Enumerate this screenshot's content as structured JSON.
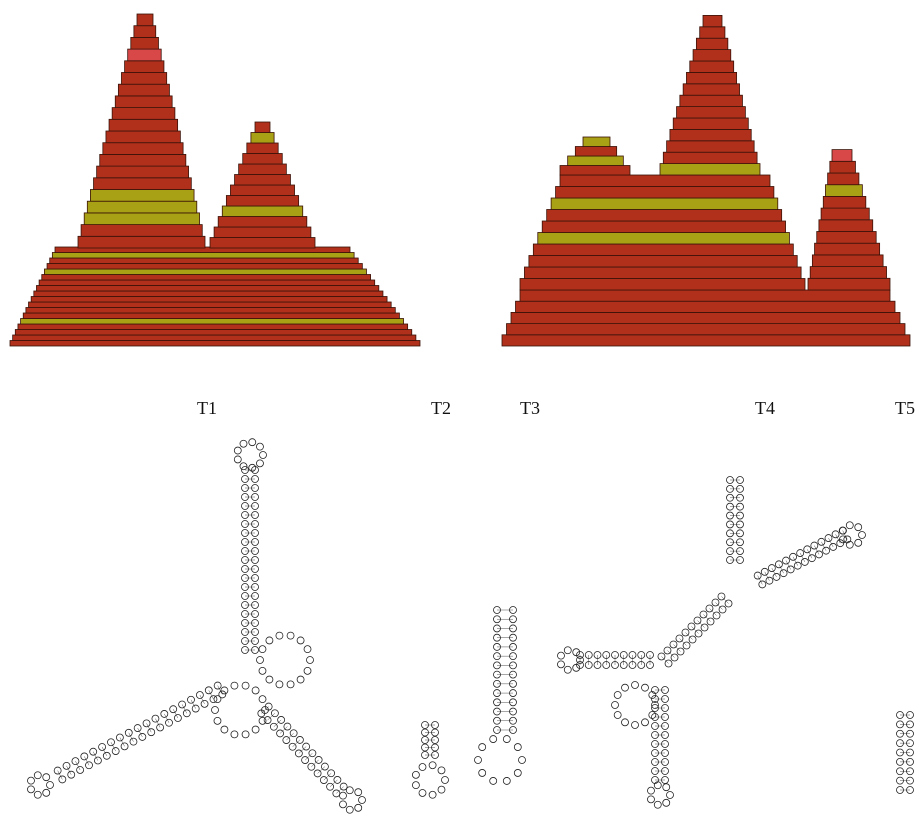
{
  "labels": [
    "T1",
    "T2",
    "T3",
    "T4",
    "T5"
  ]
}
